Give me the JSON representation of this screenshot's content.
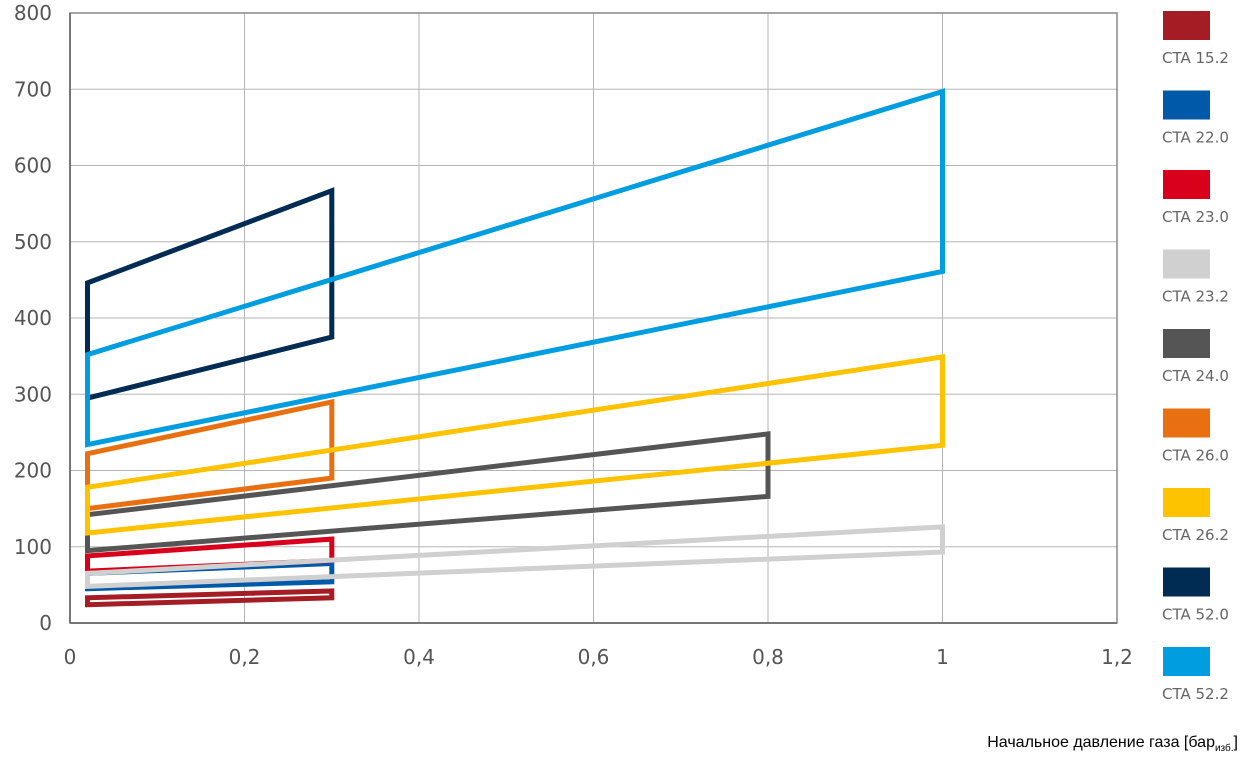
{
  "chart_data": {
    "type": "area",
    "title": "",
    "xlabel": "Начальное давление газа [бар",
    "xlabel_sub": "изб.",
    "xlabel_end": "]",
    "ylabel": "",
    "xlim": [
      0,
      1.2
    ],
    "ylim": [
      0,
      800
    ],
    "x_ticks": [
      "0",
      "0,2",
      "0,4",
      "0,6",
      "0,8",
      "1",
      "1,2"
    ],
    "x_tick_values": [
      0,
      0.2,
      0.4,
      0.6,
      0.8,
      1.0,
      1.2
    ],
    "y_ticks": [
      "0",
      "100",
      "200",
      "300",
      "400",
      "500",
      "600",
      "700",
      "800"
    ],
    "y_tick_values": [
      0,
      100,
      200,
      300,
      400,
      500,
      600,
      700,
      800
    ],
    "grid": true,
    "legend_position": "right",
    "series": [
      {
        "name": "CTA 15.2",
        "color": "#a51d24",
        "polygon": [
          [
            0.02,
            24
          ],
          [
            0.3,
            33
          ],
          [
            0.3,
            42
          ],
          [
            0.02,
            33
          ]
        ]
      },
      {
        "name": "CTA 22.0",
        "color": "#005aa9",
        "polygon": [
          [
            0.02,
            45
          ],
          [
            0.3,
            54
          ],
          [
            0.3,
            78
          ],
          [
            0.02,
            65
          ]
        ]
      },
      {
        "name": "CTA 23.0",
        "color": "#d9001b",
        "polygon": [
          [
            0.02,
            68
          ],
          [
            0.3,
            82
          ],
          [
            0.3,
            110
          ],
          [
            0.02,
            88
          ]
        ]
      },
      {
        "name": "CTA 23.2",
        "color": "#d0d0d0",
        "polygon": [
          [
            0.02,
            48
          ],
          [
            1.0,
            93
          ],
          [
            1.0,
            126
          ],
          [
            0.02,
            65
          ]
        ]
      },
      {
        "name": "CTA 24.0",
        "color": "#555555",
        "polygon": [
          [
            0.02,
            95
          ],
          [
            0.8,
            166
          ],
          [
            0.8,
            248
          ],
          [
            0.02,
            142
          ]
        ]
      },
      {
        "name": "CTA 26.0",
        "color": "#e87011",
        "polygon": [
          [
            0.02,
            150
          ],
          [
            0.3,
            190
          ],
          [
            0.3,
            290
          ],
          [
            0.02,
            222
          ]
        ]
      },
      {
        "name": "CTA 26.2",
        "color": "#fdc300",
        "polygon": [
          [
            0.02,
            118
          ],
          [
            1.0,
            233
          ],
          [
            1.0,
            349
          ],
          [
            0.02,
            178
          ]
        ]
      },
      {
        "name": "CTA 52.0",
        "color": "#002c54",
        "polygon": [
          [
            0.02,
            295
          ],
          [
            0.3,
            375
          ],
          [
            0.3,
            567
          ],
          [
            0.02,
            446
          ]
        ]
      },
      {
        "name": "CTA 52.2",
        "color": "#009ee0",
        "polygon": [
          [
            0.02,
            234
          ],
          [
            1.0,
            461
          ],
          [
            1.0,
            697
          ],
          [
            0.02,
            352
          ]
        ]
      }
    ]
  }
}
